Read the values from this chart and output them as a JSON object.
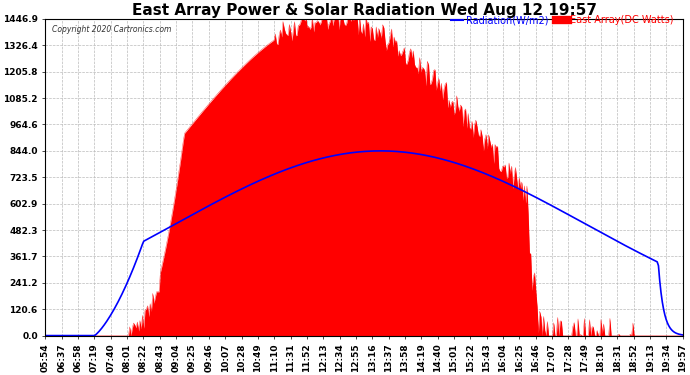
{
  "title": "East Array Power & Solar Radiation Wed Aug 12 19:57",
  "copyright": "Copyright 2020 Cartronics.com",
  "legend_radiation": "Radiation(W/m2)",
  "legend_array": "East Array(DC Watts)",
  "y_ticks": [
    0.0,
    120.6,
    241.2,
    361.7,
    482.3,
    602.9,
    723.5,
    844.0,
    964.6,
    1085.2,
    1205.8,
    1326.4,
    1446.9
  ],
  "background_color": "#ffffff",
  "plot_bg_color": "#ffffff",
  "grid_color": "#bbbbbb",
  "radiation_color": "#0000ff",
  "array_color": "#ff0000",
  "array_fill_color": "#ff0000",
  "x_labels": [
    "05:54",
    "06:37",
    "06:58",
    "07:19",
    "07:40",
    "08:01",
    "08:22",
    "08:43",
    "09:04",
    "09:25",
    "09:46",
    "10:07",
    "10:28",
    "10:49",
    "11:10",
    "11:31",
    "11:52",
    "12:13",
    "12:34",
    "12:55",
    "13:16",
    "13:37",
    "13:58",
    "14:19",
    "14:40",
    "15:01",
    "15:22",
    "15:43",
    "16:04",
    "16:25",
    "16:46",
    "17:07",
    "17:28",
    "17:49",
    "18:10",
    "18:31",
    "18:52",
    "19:13",
    "19:34",
    "19:57"
  ],
  "ylim": [
    0,
    1446.9
  ],
  "title_fontsize": 11,
  "tick_fontsize": 6.5,
  "label_color": "#000000",
  "array_peak": 1446.0,
  "radiation_peak": 844.0,
  "n_points": 500
}
